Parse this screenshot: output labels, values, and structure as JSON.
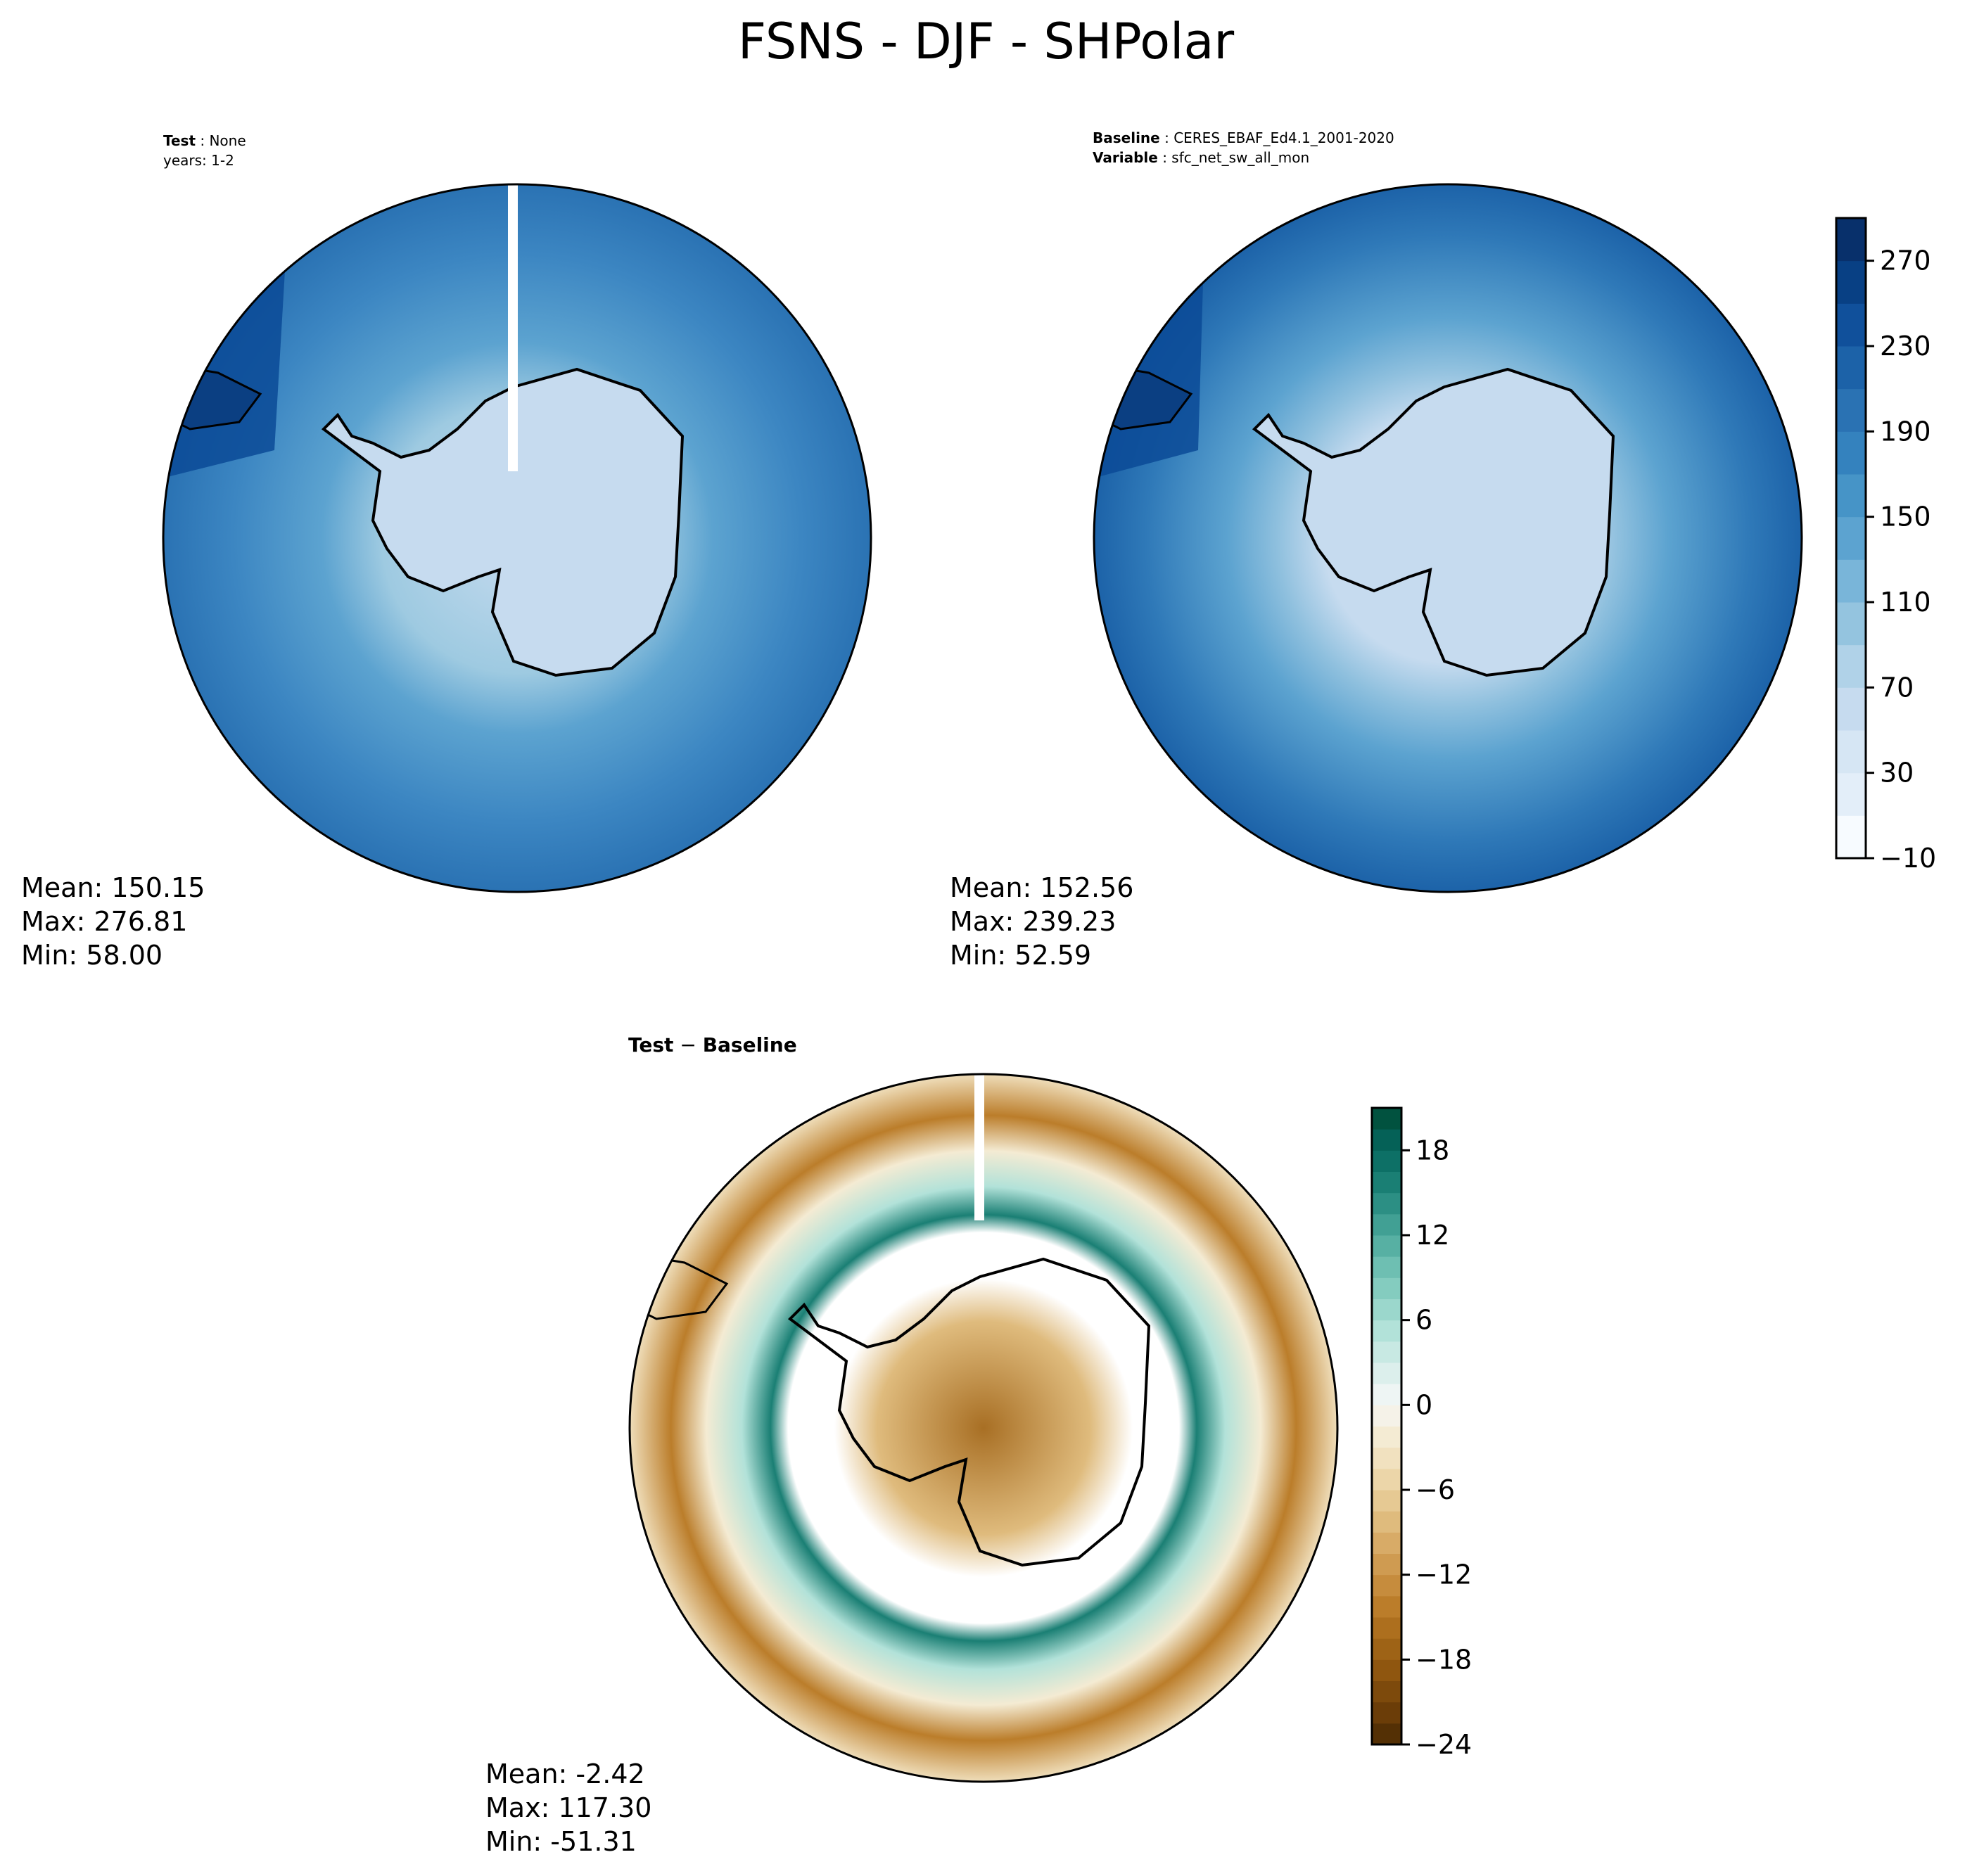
{
  "figure": {
    "title": "FSNS - DJF - SHPolar"
  },
  "panels": {
    "test": {
      "meta": [
        {
          "key": "Test",
          "value": "None"
        },
        {
          "key": "",
          "value": "years: 1-2"
        }
      ],
      "stats": {
        "mean": "Mean: 150.15",
        "max": "Max: 276.81",
        "min": "Min: 58.00"
      }
    },
    "baseline": {
      "meta": [
        {
          "key": "Baseline",
          "value": "CERES_EBAF_Ed4.1_2001-2020"
        },
        {
          "key": "Variable",
          "value": "sfc_net_sw_all_mon"
        }
      ],
      "stats": {
        "mean": "Mean: 152.56",
        "max": "Max: 239.23",
        "min": "Min: 52.59"
      }
    },
    "diff": {
      "label_a": "Test",
      "label_sep": " − ",
      "label_b": "Baseline",
      "stats": {
        "mean": "Mean: -2.42",
        "max": "Max: 117.30",
        "min": "Min: -51.31"
      }
    }
  },
  "chart_data": [
    {
      "type": "heatmap",
      "name": "test",
      "projection": "south-polar-stereographic",
      "colormap": "Blues",
      "clim": [
        -10,
        290
      ],
      "stats": {
        "mean": 150.15,
        "max": 276.81,
        "min": 58.0
      }
    },
    {
      "type": "heatmap",
      "name": "baseline",
      "projection": "south-polar-stereographic",
      "colormap": "Blues",
      "clim": [
        -10,
        290
      ],
      "stats": {
        "mean": 152.56,
        "max": 239.23,
        "min": 52.59
      },
      "colorbar": {
        "ticks": [
          -10,
          30,
          70,
          110,
          150,
          190,
          230,
          270
        ],
        "tick_labels": [
          "−10",
          "30",
          "70",
          "110",
          "150",
          "190",
          "230",
          "270"
        ],
        "levels": [
          -10,
          10,
          30,
          50,
          70,
          90,
          110,
          130,
          150,
          170,
          190,
          210,
          230,
          250,
          270,
          290
        ],
        "colors": [
          "#f7fbff",
          "#e3eef9",
          "#d6e6f4",
          "#c6dbef",
          "#b0d2e8",
          "#94c4df",
          "#79b5d9",
          "#5ca3d0",
          "#4694c7",
          "#3482be",
          "#2a72b3",
          "#1c62a8",
          "#10509b",
          "#084084",
          "#08306b"
        ]
      }
    },
    {
      "type": "heatmap",
      "name": "difference",
      "projection": "south-polar-stereographic",
      "colormap": "BrBG",
      "clim": [
        -24,
        21
      ],
      "stats": {
        "mean": -2.42,
        "max": 117.3,
        "min": -51.31
      },
      "colorbar": {
        "ticks": [
          -24,
          -18,
          -12,
          -6,
          0,
          6,
          12,
          18
        ],
        "tick_labels": [
          "−24",
          "−18",
          "−12",
          "−6",
          "0",
          "6",
          "12",
          "18"
        ],
        "levels": [
          -24,
          -22.5,
          -21,
          -19.5,
          -18,
          -16.5,
          -15,
          -13.5,
          -12,
          -10.5,
          -9,
          -7.5,
          -6,
          -4.5,
          -3,
          -1.5,
          0,
          1.5,
          3,
          4.5,
          6,
          7.5,
          9,
          10.5,
          12,
          13.5,
          15,
          16.5,
          18,
          19.5,
          21
        ],
        "colors": [
          "#543005",
          "#6b3d08",
          "#7d4a0c",
          "#8f560f",
          "#9e6316",
          "#ad6f1e",
          "#bb7d2a",
          "#c68c3d",
          "#cf9b51",
          "#d8ab67",
          "#dfbb7d",
          "#e6c993",
          "#ecd6a9",
          "#f1e1bf",
          "#f4ebd3",
          "#f5f2e8",
          "#eef5f4",
          "#dcefec",
          "#c8e9e3",
          "#b2e2d9",
          "#9bd7cc",
          "#84ccbf",
          "#6ebfb2",
          "#57b0a3",
          "#41a094",
          "#2c8f84",
          "#1a7f74",
          "#0d7066",
          "#056157",
          "#01523f"
        ]
      }
    }
  ]
}
